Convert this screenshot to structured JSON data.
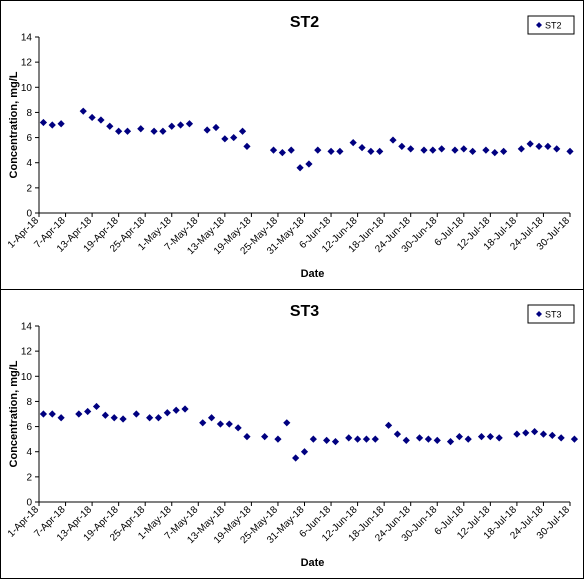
{
  "chart_data": [
    {
      "type": "scatter",
      "title": "ST2",
      "xlabel": "Date",
      "ylabel": "Concentration, mg/L",
      "ylim": [
        0,
        14
      ],
      "yticks": [
        "0",
        "2",
        "4",
        "6",
        "8",
        "10",
        "12",
        "14"
      ],
      "xlim": [
        "2018-04-01",
        "2018-07-30"
      ],
      "xtick_labels": [
        "1-Apr-18",
        "7-Apr-18",
        "13-Apr-18",
        "19-Apr-18",
        "25-Apr-18",
        "1-May-18",
        "7-May-18",
        "13-May-18",
        "19-May-18",
        "25-May-18",
        "31-May-18",
        "6-Jun-18",
        "12-Jun-18",
        "18-Jun-18",
        "24-Jun-18",
        "30-Jun-18",
        "6-Jul-18",
        "12-Jul-18",
        "18-Jul-18",
        "24-Jul-18",
        "30-Jul-18"
      ],
      "legend": "top-right",
      "marker_color": "#000080",
      "series": [
        {
          "name": "ST2",
          "x": [
            "2018-04-02",
            "2018-04-04",
            "2018-04-06",
            "2018-04-11",
            "2018-04-13",
            "2018-04-15",
            "2018-04-17",
            "2018-04-19",
            "2018-04-21",
            "2018-04-24",
            "2018-04-27",
            "2018-04-29",
            "2018-05-01",
            "2018-05-03",
            "2018-05-05",
            "2018-05-09",
            "2018-05-11",
            "2018-05-13",
            "2018-05-15",
            "2018-05-17",
            "2018-05-18",
            "2018-05-24",
            "2018-05-26",
            "2018-05-28",
            "2018-05-30",
            "2018-06-01",
            "2018-06-03",
            "2018-06-06",
            "2018-06-08",
            "2018-06-11",
            "2018-06-13",
            "2018-06-15",
            "2018-06-17",
            "2018-06-20",
            "2018-06-22",
            "2018-06-24",
            "2018-06-27",
            "2018-06-29",
            "2018-07-01",
            "2018-07-04",
            "2018-07-06",
            "2018-07-08",
            "2018-07-11",
            "2018-07-13",
            "2018-07-15",
            "2018-07-19",
            "2018-07-21",
            "2018-07-23",
            "2018-07-25",
            "2018-07-27",
            "2018-07-30"
          ],
          "y": [
            7.2,
            7.0,
            7.1,
            8.1,
            7.6,
            7.4,
            6.9,
            6.5,
            6.5,
            6.7,
            6.5,
            6.5,
            6.9,
            7.0,
            7.1,
            6.6,
            6.8,
            5.9,
            6.0,
            6.5,
            5.3,
            5.0,
            4.8,
            5.0,
            3.6,
            3.9,
            5.0,
            4.9,
            4.9,
            5.6,
            5.2,
            4.9,
            4.9,
            5.8,
            5.3,
            5.1,
            5.0,
            5.0,
            5.1,
            5.0,
            5.1,
            4.9,
            5.0,
            4.8,
            4.9,
            5.1,
            5.5,
            5.3,
            5.3,
            5.1,
            4.9
          ]
        }
      ]
    },
    {
      "type": "scatter",
      "title": "ST3",
      "xlabel": "Date",
      "ylabel": "Concentration, mg/L",
      "ylim": [
        0,
        14
      ],
      "yticks": [
        "0",
        "2",
        "4",
        "6",
        "8",
        "10",
        "12",
        "14"
      ],
      "xlim": [
        "2018-04-01",
        "2018-07-30"
      ],
      "xtick_labels": [
        "1-Apr-18",
        "7-Apr-18",
        "13-Apr-18",
        "19-Apr-18",
        "25-Apr-18",
        "1-May-18",
        "7-May-18",
        "13-May-18",
        "19-May-18",
        "25-May-18",
        "31-May-18",
        "6-Jun-18",
        "12-Jun-18",
        "18-Jun-18",
        "24-Jun-18",
        "30-Jun-18",
        "6-Jul-18",
        "12-Jul-18",
        "18-Jul-18",
        "24-Jul-18",
        "30-Jul-18"
      ],
      "legend": "top-right",
      "marker_color": "#000080",
      "series": [
        {
          "name": "ST3",
          "x": [
            "2018-04-02",
            "2018-04-04",
            "2018-04-06",
            "2018-04-10",
            "2018-04-12",
            "2018-04-14",
            "2018-04-16",
            "2018-04-18",
            "2018-04-20",
            "2018-04-23",
            "2018-04-26",
            "2018-04-28",
            "2018-04-30",
            "2018-05-02",
            "2018-05-04",
            "2018-05-08",
            "2018-05-10",
            "2018-05-12",
            "2018-05-14",
            "2018-05-16",
            "2018-05-18",
            "2018-05-22",
            "2018-05-25",
            "2018-05-27",
            "2018-05-29",
            "2018-05-31",
            "2018-06-02",
            "2018-06-05",
            "2018-06-07",
            "2018-06-10",
            "2018-06-12",
            "2018-06-14",
            "2018-06-16",
            "2018-06-19",
            "2018-06-21",
            "2018-06-23",
            "2018-06-26",
            "2018-06-28",
            "2018-06-30",
            "2018-07-03",
            "2018-07-05",
            "2018-07-07",
            "2018-07-10",
            "2018-07-12",
            "2018-07-14",
            "2018-07-18",
            "2018-07-20",
            "2018-07-22",
            "2018-07-24",
            "2018-07-26",
            "2018-07-28",
            "2018-07-31"
          ],
          "y": [
            7.0,
            7.0,
            6.7,
            7.0,
            7.2,
            7.6,
            6.9,
            6.7,
            6.6,
            7.0,
            6.7,
            6.7,
            7.1,
            7.3,
            7.4,
            6.3,
            6.7,
            6.2,
            6.2,
            5.9,
            5.2,
            5.2,
            5.0,
            6.3,
            3.5,
            4.0,
            5.0,
            4.9,
            4.8,
            5.1,
            5.0,
            5.0,
            5.0,
            6.1,
            5.4,
            4.9,
            5.1,
            5.0,
            4.9,
            4.8,
            5.2,
            5.0,
            5.2,
            5.2,
            5.1,
            5.4,
            5.5,
            5.6,
            5.4,
            5.3,
            5.1,
            5.0
          ]
        }
      ]
    }
  ]
}
